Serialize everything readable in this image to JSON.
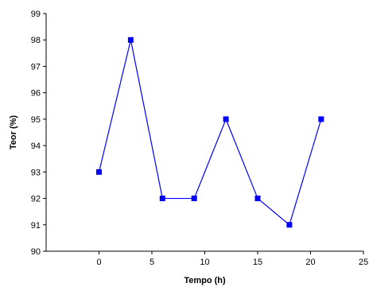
{
  "chart_data": {
    "type": "line",
    "title": "",
    "xlabel": "Tempo (h)",
    "ylabel": "Teor (%)",
    "xlim": [
      -5,
      25
    ],
    "ylim": [
      90,
      99
    ],
    "x_ticks": [
      0,
      5,
      10,
      15,
      20,
      25
    ],
    "y_ticks": [
      90,
      91,
      92,
      93,
      94,
      95,
      96,
      97,
      98,
      99
    ],
    "grid": false,
    "legend": "none",
    "series": [
      {
        "x": [
          0,
          3,
          6,
          9,
          12,
          15,
          18,
          21
        ],
        "values": [
          93,
          98,
          92,
          92,
          95,
          92,
          91,
          95
        ],
        "color": "#0000FF",
        "marker": "square"
      }
    ]
  }
}
